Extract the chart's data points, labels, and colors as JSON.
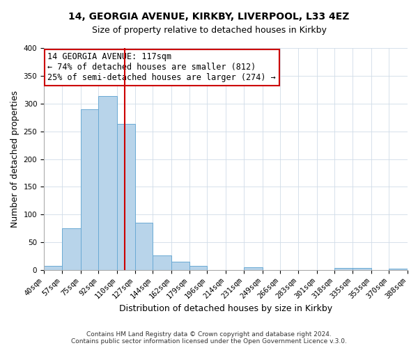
{
  "title1": "14, GEORGIA AVENUE, KIRKBY, LIVERPOOL, L33 4EZ",
  "title2": "Size of property relative to detached houses in Kirkby",
  "xlabel": "Distribution of detached houses by size in Kirkby",
  "ylabel": "Number of detached properties",
  "bin_edges": [
    40,
    57,
    75,
    92,
    110,
    127,
    144,
    162,
    179,
    196,
    214,
    231,
    249,
    266,
    283,
    301,
    318,
    335,
    353,
    370,
    388
  ],
  "bin_labels": [
    "40sqm",
    "57sqm",
    "75sqm",
    "92sqm",
    "110sqm",
    "127sqm",
    "144sqm",
    "162sqm",
    "179sqm",
    "196sqm",
    "214sqm",
    "231sqm",
    "249sqm",
    "266sqm",
    "283sqm",
    "301sqm",
    "318sqm",
    "335sqm",
    "353sqm",
    "370sqm",
    "388sqm"
  ],
  "bar_heights": [
    8,
    75,
    290,
    313,
    263,
    85,
    27,
    15,
    8,
    0,
    0,
    5,
    0,
    0,
    0,
    0,
    4,
    4,
    0,
    3
  ],
  "bar_color": "#b8d4ea",
  "bar_edge_color": "#6aaad4",
  "property_line_x": 117,
  "property_line_color": "#cc0000",
  "annotation_title": "14 GEORGIA AVENUE: 117sqm",
  "annotation_line1": "← 74% of detached houses are smaller (812)",
  "annotation_line2": "25% of semi-detached houses are larger (274) →",
  "annotation_box_facecolor": "#ffffff",
  "annotation_box_edgecolor": "#cc0000",
  "ylim": [
    0,
    400
  ],
  "yticks": [
    0,
    50,
    100,
    150,
    200,
    250,
    300,
    350,
    400
  ],
  "footer1": "Contains HM Land Registry data © Crown copyright and database right 2024.",
  "footer2": "Contains public sector information licensed under the Open Government Licence v.3.0.",
  "bg_color": "#ffffff",
  "plot_bg_color": "#ffffff",
  "grid_color": "#d0dce8",
  "title1_fontsize": 10,
  "title2_fontsize": 9,
  "xlabel_fontsize": 9,
  "ylabel_fontsize": 9,
  "tick_fontsize": 7.5,
  "footer_fontsize": 6.5,
  "ann_fontsize": 8.5
}
